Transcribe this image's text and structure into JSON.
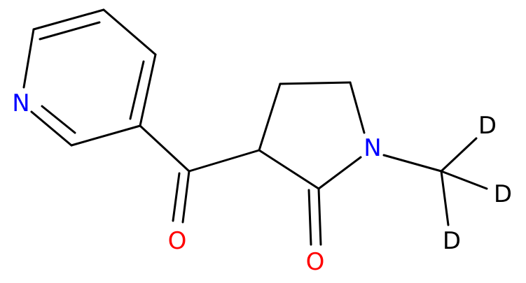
{
  "atoms": [
    {
      "label": "N"
    },
    {
      "label": "O"
    },
    {
      "label": "O"
    },
    {
      "label": "N"
    },
    {
      "label": "D"
    },
    {
      "label": "D"
    },
    {
      "label": "D"
    }
  ]
}
